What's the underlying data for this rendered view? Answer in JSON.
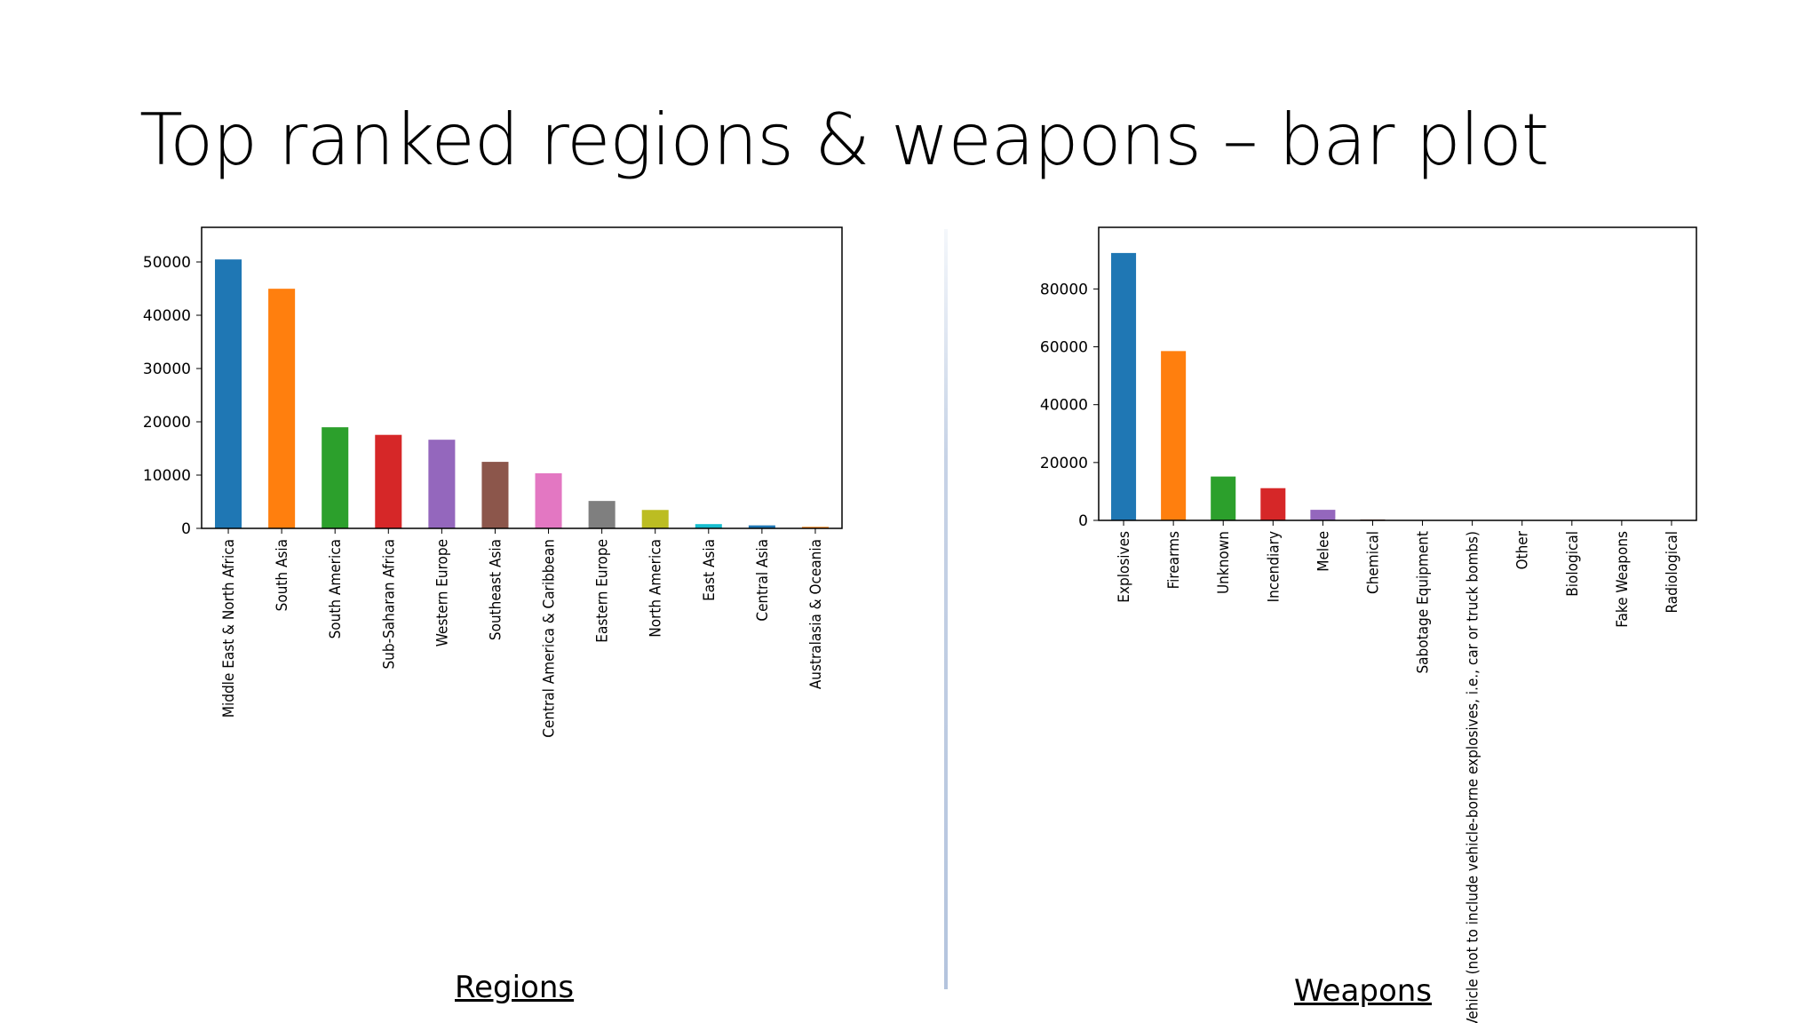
{
  "slide": {
    "title": "Top ranked regions & weapons – bar plot"
  },
  "captions": {
    "regions": "Regions",
    "weapons": "Weapons"
  },
  "chart_data": [
    {
      "type": "bar",
      "categories": [
        "Middle East & North Africa",
        "South Asia",
        "South America",
        "Sub-Saharan Africa",
        "Western Europe",
        "Southeast Asia",
        "Central America & Caribbean",
        "Eastern Europe",
        "North America",
        "East Asia",
        "Central Asia",
        "Australasia & Oceania"
      ],
      "values": [
        50474,
        44974,
        18978,
        17550,
        16639,
        12485,
        10344,
        5144,
        3456,
        802,
        563,
        282
      ],
      "colors": [
        "#1f77b4",
        "#ff7f0e",
        "#2ca02c",
        "#d62728",
        "#9467bd",
        "#8c564b",
        "#e377c2",
        "#7f7f7f",
        "#bcbd22",
        "#17becf",
        "#1f77b4",
        "#ff7f0e"
      ],
      "yticks": [
        0,
        10000,
        20000,
        30000,
        40000,
        50000
      ],
      "ylim": [
        0,
        53000
      ],
      "grid": false
    },
    {
      "type": "bar",
      "categories": [
        "Explosives",
        "Firearms",
        "Unknown",
        "Incendiary",
        "Melee",
        "Chemical",
        "Sabotage Equipment",
        "Vehicle (not to include vehicle-borne explosives, i.e., car or truck bombs)",
        "Other",
        "Biological",
        "Fake Weapons",
        "Radiological"
      ],
      "values": [
        92426,
        58524,
        15157,
        11135,
        3655,
        321,
        141,
        136,
        114,
        35,
        33,
        14
      ],
      "colors": [
        "#1f77b4",
        "#ff7f0e",
        "#2ca02c",
        "#d62728",
        "#9467bd",
        "#8c564b",
        "#e377c2",
        "#7f7f7f",
        "#bcbd22",
        "#17becf",
        "#1f77b4",
        "#ff7f0e"
      ],
      "yticks": [
        0,
        20000,
        40000,
        60000,
        80000
      ],
      "ylim": [
        0,
        97000
      ],
      "grid": false
    }
  ]
}
